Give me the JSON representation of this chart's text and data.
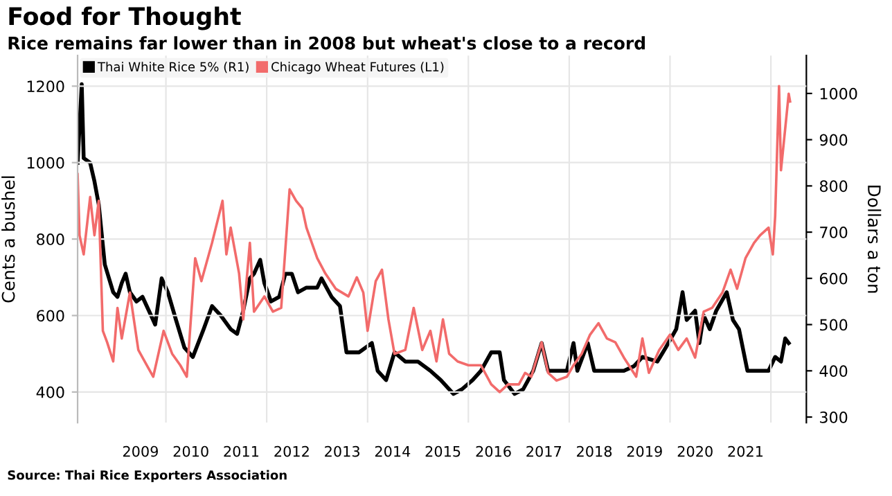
{
  "chart_data": {
    "type": "line",
    "title": "Food for Thought",
    "subtitle": "Rice remains far lower than in 2008 but wheat's close to a record",
    "ylabel": "Cents a bushel",
    "y2label": "Dollars a ton",
    "annotations": [
      "Source: Thai Rice Exporters Association"
    ],
    "xlim": [
      "2008-04-01",
      "2022-09-15"
    ],
    "xticks": [
      {
        "value": "2010-01-01",
        "label": null
      },
      {
        "value": "2012-01-01",
        "label": null
      },
      {
        "value": "2014-01-01",
        "label": null
      },
      {
        "value": "2016-01-01",
        "label": null
      },
      {
        "value": "2018-01-01",
        "label": null
      },
      {
        "value": "2020-01-01",
        "label": null
      },
      {
        "value": "2022-01-01",
        "label": null
      },
      {
        "value": "2009-07-01",
        "label": "2009"
      },
      {
        "value": "2010-07-01",
        "label": "2010"
      },
      {
        "value": "2011-07-01",
        "label": "2011"
      },
      {
        "value": "2012-07-01",
        "label": "2012"
      },
      {
        "value": "2013-07-01",
        "label": "2013"
      },
      {
        "value": "2014-07-01",
        "label": "2014"
      },
      {
        "value": "2015-07-01",
        "label": "2015"
      },
      {
        "value": "2016-07-01",
        "label": "2016"
      },
      {
        "value": "2017-07-01",
        "label": "2017"
      },
      {
        "value": "2018-07-01",
        "label": "2018"
      },
      {
        "value": "2019-07-01",
        "label": "2019"
      },
      {
        "value": "2020-07-01",
        "label": "2020"
      },
      {
        "value": "2021-07-01",
        "label": "2021"
      }
    ],
    "ylim": [
      320,
      1280
    ],
    "yticks": [
      400,
      600,
      800,
      1000,
      1200
    ],
    "y2lim": [
      288,
      1082
    ],
    "y2ticks": [
      300,
      400,
      500,
      600,
      700,
      800,
      900,
      1000
    ],
    "grid": true,
    "legend": "top left",
    "series": [
      {
        "name": "Thai White Rice 5% (R1)",
        "color": "#000000",
        "axis": "y2",
        "x": [
          "2008-04-01",
          "2008-05-01",
          "2008-05-15",
          "2008-07-01",
          "2008-08-01",
          "2008-09-01",
          "2008-10-15",
          "2008-12-15",
          "2009-01-15",
          "2009-02-15",
          "2009-03-15",
          "2009-04-15",
          "2009-06-01",
          "2009-07-15",
          "2009-09-15",
          "2009-10-15",
          "2009-12-01",
          "2010-01-15",
          "2010-03-15",
          "2010-05-15",
          "2010-07-15",
          "2010-10-01",
          "2010-12-01",
          "2011-02-01",
          "2011-04-15",
          "2011-06-01",
          "2011-07-15",
          "2011-09-01",
          "2011-10-01",
          "2011-11-15",
          "2011-12-15",
          "2012-02-01",
          "2012-04-01",
          "2012-05-15",
          "2012-07-01",
          "2012-08-15",
          "2012-10-15",
          "2013-01-01",
          "2013-02-01",
          "2013-04-15",
          "2013-06-15",
          "2013-08-01",
          "2013-11-01",
          "2014-02-01",
          "2014-03-15",
          "2014-05-15",
          "2014-07-15",
          "2014-10-01",
          "2015-01-01",
          "2015-04-01",
          "2015-06-15",
          "2015-09-15",
          "2015-11-15",
          "2016-02-01",
          "2016-04-01",
          "2016-06-15",
          "2016-08-15",
          "2016-09-15",
          "2016-12-01",
          "2017-02-01",
          "2017-04-15",
          "2017-06-15",
          "2017-08-01",
          "2017-10-01",
          "2017-12-15",
          "2018-02-01",
          "2018-03-01",
          "2018-05-15",
          "2018-07-01",
          "2018-10-01",
          "2018-12-01",
          "2019-02-01",
          "2019-04-15",
          "2019-06-15",
          "2019-10-01",
          "2019-12-01",
          "2020-02-15",
          "2020-04-01",
          "2020-05-01",
          "2020-07-01",
          "2020-08-01",
          "2020-09-01",
          "2020-10-15",
          "2020-12-01",
          "2021-02-15",
          "2021-04-01",
          "2021-05-15",
          "2021-07-15",
          "2021-09-01",
          "2021-12-15",
          "2022-02-01",
          "2022-03-15",
          "2022-04-15",
          "2022-05-10"
        ],
        "values": [
          850,
          1020,
          860,
          850,
          810,
          760,
          630,
          570,
          560,
          590,
          610,
          570,
          550,
          560,
          520,
          500,
          600,
          570,
          510,
          450,
          430,
          490,
          540,
          520,
          490,
          480,
          530,
          600,
          610,
          640,
          590,
          550,
          560,
          610,
          610,
          570,
          580,
          580,
          600,
          560,
          540,
          440,
          440,
          460,
          400,
          380,
          440,
          420,
          420,
          400,
          380,
          350,
          360,
          380,
          400,
          440,
          440,
          380,
          350,
          360,
          400,
          460,
          400,
          400,
          400,
          460,
          400,
          460,
          400,
          400,
          400,
          400,
          410,
          430,
          420,
          450,
          490,
          570,
          510,
          530,
          460,
          520,
          490,
          530,
          570,
          510,
          490,
          400,
          400,
          400,
          430,
          420,
          470,
          460
        ]
      },
      {
        "name": "Chicago Wheat Futures (L1)",
        "color": "#f26b6b",
        "axis": "y",
        "x": [
          "2008-04-01",
          "2008-04-15",
          "2008-05-15",
          "2008-07-01",
          "2008-08-01",
          "2008-09-01",
          "2008-10-01",
          "2008-11-01",
          "2008-12-15",
          "2009-01-15",
          "2009-02-15",
          "2009-04-15",
          "2009-06-15",
          "2009-08-15",
          "2009-10-01",
          "2009-12-15",
          "2010-02-15",
          "2010-04-15",
          "2010-06-01",
          "2010-08-01",
          "2010-09-15",
          "2010-12-01",
          "2011-02-15",
          "2011-03-15",
          "2011-04-15",
          "2011-06-15",
          "2011-07-15",
          "2011-09-01",
          "2011-10-01",
          "2011-12-15",
          "2012-02-15",
          "2012-04-15",
          "2012-06-15",
          "2012-08-01",
          "2012-09-15",
          "2012-10-15",
          "2013-01-01",
          "2013-03-01",
          "2013-05-15",
          "2013-08-15",
          "2013-10-15",
          "2013-12-01",
          "2014-01-01",
          "2014-03-01",
          "2014-04-15",
          "2014-06-01",
          "2014-07-15",
          "2014-10-01",
          "2014-12-01",
          "2015-02-01",
          "2015-04-01",
          "2015-05-15",
          "2015-07-01",
          "2015-08-15",
          "2015-10-15",
          "2016-01-01",
          "2016-04-01",
          "2016-06-15",
          "2016-08-15",
          "2016-10-15",
          "2017-01-01",
          "2017-02-15",
          "2017-04-01",
          "2017-06-15",
          "2017-08-01",
          "2017-10-01",
          "2017-12-15",
          "2018-02-01",
          "2018-04-01",
          "2018-06-01",
          "2018-08-01",
          "2018-10-01",
          "2018-12-01",
          "2019-02-01",
          "2019-05-01",
          "2019-06-15",
          "2019-08-01",
          "2019-10-15",
          "2020-01-01",
          "2020-03-01",
          "2020-05-01",
          "2020-07-01",
          "2020-09-01",
          "2020-11-01",
          "2021-01-15",
          "2021-03-15",
          "2021-05-01",
          "2021-07-01",
          "2021-09-01",
          "2021-10-15",
          "2021-12-15",
          "2022-01-15",
          "2022-02-01",
          "2022-03-01",
          "2022-03-15",
          "2022-04-15",
          "2022-05-10",
          "2022-05-20"
        ],
        "values": [
          970,
          810,
          760,
          910,
          810,
          900,
          560,
          530,
          480,
          620,
          540,
          660,
          510,
          470,
          440,
          560,
          500,
          470,
          440,
          750,
          690,
          790,
          900,
          760,
          830,
          710,
          590,
          790,
          610,
          650,
          610,
          620,
          930,
          900,
          880,
          830,
          750,
          710,
          670,
          650,
          700,
          660,
          560,
          690,
          720,
          590,
          500,
          510,
          620,
          510,
          560,
          480,
          590,
          500,
          480,
          470,
          470,
          420,
          400,
          420,
          420,
          450,
          440,
          530,
          450,
          430,
          440,
          470,
          500,
          550,
          580,
          540,
          530,
          490,
          440,
          540,
          450,
          510,
          550,
          510,
          540,
          490,
          610,
          620,
          660,
          720,
          670,
          750,
          790,
          810,
          830,
          760,
          860,
          1200,
          980,
          1090,
          1180,
          1160
        ]
      }
    ]
  }
}
